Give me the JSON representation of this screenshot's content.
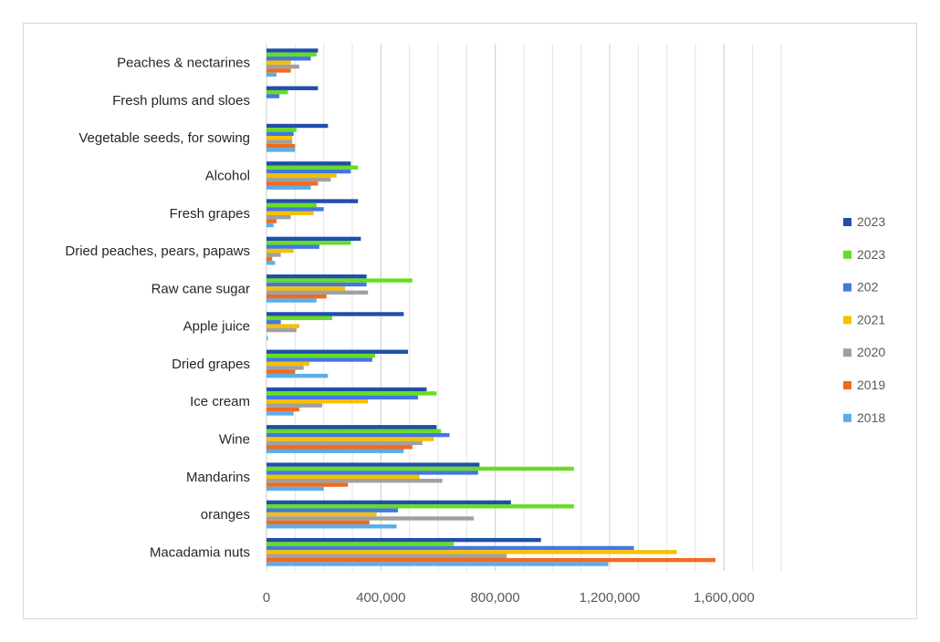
{
  "chart_data": {
    "type": "bar",
    "orientation": "horizontal",
    "categories": [
      "Macadamia nuts",
      "oranges",
      "Mandarins",
      "Wine",
      "Ice cream",
      "Dried grapes",
      "Apple juice",
      "Raw cane sugar",
      "Dried peaches, pears, papaws",
      "Fresh grapes",
      "Alcohol",
      "Vegetable seeds, for sowing",
      "Fresh plums and sloes",
      "Peaches & nectarines"
    ],
    "series": [
      {
        "name": "2023",
        "color": "#1f4fa8",
        "values": [
          960000,
          855000,
          745000,
          595000,
          560000,
          495000,
          480000,
          350000,
          330000,
          320000,
          295000,
          215000,
          180000,
          180000
        ]
      },
      {
        "name": "2023",
        "color": "#66dd22",
        "values": [
          655000,
          1075000,
          1075000,
          610000,
          595000,
          380000,
          230000,
          510000,
          295000,
          175000,
          320000,
          105000,
          75000,
          175000
        ]
      },
      {
        "name": "202",
        "color": "#4477e0",
        "values": [
          1285000,
          460000,
          740000,
          640000,
          530000,
          370000,
          50000,
          350000,
          185000,
          200000,
          295000,
          95000,
          45000,
          155000
        ]
      },
      {
        "name": "2021",
        "color": "#f5c000",
        "values": [
          1435000,
          385000,
          535000,
          585000,
          355000,
          150000,
          115000,
          275000,
          95000,
          165000,
          245000,
          90000,
          0,
          85000
        ]
      },
      {
        "name": "2020",
        "color": "#a0a0a0",
        "values": [
          840000,
          725000,
          615000,
          545000,
          195000,
          130000,
          105000,
          355000,
          50000,
          85000,
          225000,
          90000,
          0,
          115000
        ]
      },
      {
        "name": "2019",
        "color": "#f06a21",
        "values": [
          1570000,
          360000,
          285000,
          510000,
          115000,
          100000,
          0,
          210000,
          20000,
          35000,
          180000,
          100000,
          0,
          85000
        ]
      },
      {
        "name": "2018",
        "color": "#5aaee8",
        "values": [
          1195000,
          455000,
          200000,
          480000,
          95000,
          215000,
          5000,
          175000,
          30000,
          25000,
          155000,
          100000,
          0,
          35000
        ]
      }
    ],
    "xlim": [
      0,
      1800000
    ],
    "xticks": [
      0,
      400000,
      800000,
      1200000,
      1600000
    ],
    "xtick_labels": [
      "0",
      "400,000",
      "800,000",
      "1,200,000",
      "1,600,000"
    ],
    "minor_gridlines": true,
    "legend_position": "right",
    "legend_order": "series order, top to bottom"
  }
}
